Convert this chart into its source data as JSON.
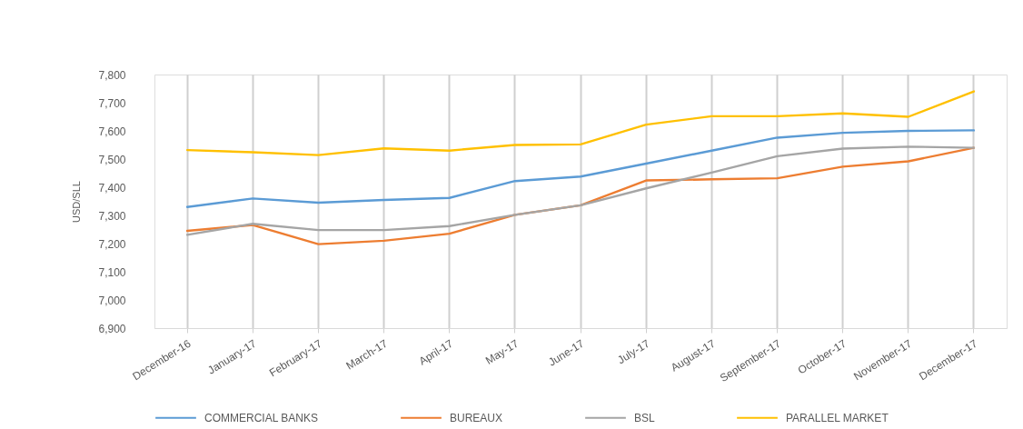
{
  "chart_data": {
    "type": "line",
    "ylabel": "USD/SLL",
    "categories": [
      "December-16",
      "January-17",
      "February-17",
      "March-17",
      "April-17",
      "May-17",
      "June-17",
      "July-17",
      "August-17",
      "September-17",
      "October-17",
      "November-17",
      "December-17"
    ],
    "series": [
      {
        "name": "COMMERCIAL BANKS",
        "color": "#5b9bd5",
        "values": [
          7330,
          7360,
          7345,
          7355,
          7362,
          7422,
          7438,
          7484,
          7530,
          7576,
          7593,
          7600,
          7602
        ]
      },
      {
        "name": "BUREAUX",
        "color": "#ed7d31",
        "values": [
          7245,
          7266,
          7198,
          7210,
          7235,
          7302,
          7336,
          7424,
          7428,
          7432,
          7473,
          7492,
          7540
        ]
      },
      {
        "name": "BSL",
        "color": "#a5a5a5",
        "values": [
          7231,
          7270,
          7248,
          7248,
          7262,
          7302,
          7336,
          7396,
          7452,
          7510,
          7537,
          7544,
          7540
        ]
      },
      {
        "name": "PARALLEL MARKET",
        "color": "#ffc000",
        "values": [
          7532,
          7524,
          7514,
          7538,
          7530,
          7550,
          7552,
          7622,
          7652,
          7652,
          7662,
          7650,
          7740
        ]
      }
    ],
    "ylim": [
      6900,
      7800
    ],
    "yticks": [
      {
        "value": 6900,
        "label": "6,900"
      },
      {
        "value": 7000,
        "label": "7,000"
      },
      {
        "value": 7100,
        "label": "7,100"
      },
      {
        "value": 7200,
        "label": "7,200"
      },
      {
        "value": 7300,
        "label": "7,300"
      },
      {
        "value": 7400,
        "label": "7,400"
      },
      {
        "value": 7500,
        "label": "7,500"
      },
      {
        "value": 7600,
        "label": "7,600"
      },
      {
        "value": 7700,
        "label": "7,700"
      },
      {
        "value": 7800,
        "label": "7,800"
      }
    ],
    "grid": "x",
    "legend": "bottom"
  }
}
